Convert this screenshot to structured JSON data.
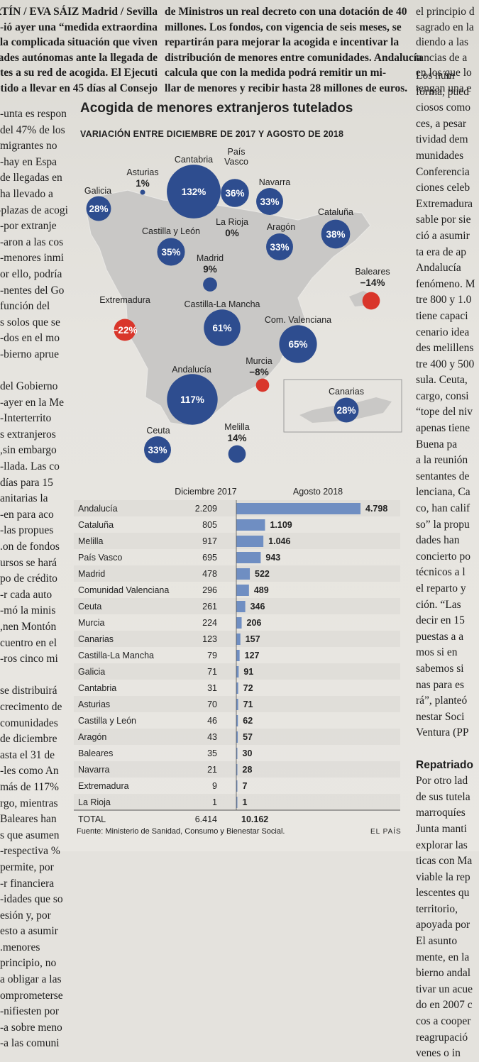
{
  "article": {
    "byline": "ARTÍN / EVA SÁIZ Madrid / Sevilla",
    "intro_left": [
      "ARTÍN / EVA SÁIZ Madrid / Sevilla",
      "ió ayer una “medida extraordina-",
      "la complicada situación que viven",
      "ades autónomas ante la llegada de",
      "ntes a su red de acogida. El Ejecuti-",
      "etido a llevar en 45 días al Consejo"
    ],
    "intro_mid": [
      "de Ministros un real decreto con una dotación de 40",
      "millones. Los fondos, con vigencia de seis meses, se",
      "repartirán para mejorar la acogida e incentivar la",
      "distribución de menores entre comunidades. Andalucía",
      "calcula que con la medida podrá remitir un mi-",
      "llar de menores y recibir hasta 28 millones de euros."
    ],
    "intro_right": [
      "el principio d",
      "sagrado en la",
      "diendo a las",
      "tancias de a",
      "en los que lo",
      "tengan una e"
    ],
    "left_column": [
      "unta es respon-",
      "del 47% de los",
      "migrantes no",
      "hay en Espa-",
      "de llegadas en",
      "ha llevado a",
      "plazas de acogi-",
      "por extranje-",
      "aron a las cos-",
      "menores inmi-",
      "or ello, podría",
      "nentes del Go-",
      "función del",
      "s solos que se",
      "dos en el mo-",
      "bierno aprue-",
      "",
      "del Gobierno",
      "ayer en la Me-",
      "Interterrito-",
      "s extranjeros",
      "sin embargo,",
      "llada. Las co-",
      "15 días para",
      "anitarias la",
      "en para aco-",
      "las propues-",
      "on de fondos.",
      "ursos se hará",
      "po de crédito",
      "r cada auto-",
      "mó la minis-",
      "nen Montón,",
      "cuentro en el",
      "ros cinco mi-",
      "",
      "se distribuirá",
      "crecimento de",
      "comunidades",
      "de diciembre",
      "asta el 31 de",
      "les como An-",
      "117% más de",
      "rgo, mientras",
      "Baleares han",
      "s que asumen",
      "% respectiva-",
      "permite, por",
      "r financiera-",
      "idades que so-",
      "esión y, por",
      "esto a asumir",
      "menores.",
      "principio, no",
      "a obligar a las",
      "omprometerse",
      "nifiesten por-",
      "a sobre meno-",
      "a las comuni-"
    ],
    "right_column": [
      "Los núm",
      "forma, pued",
      "ciosos como",
      "ces, a pesar",
      "tividad dem",
      "munidades",
      "Conferencia",
      "ciones celeb",
      "Extremadura",
      "sable por sie",
      "ció a asumir",
      "ta era de ap",
      "Andalucía",
      "fenómeno. M",
      "tre 800 y 1.0",
      "tiene capaci",
      "cenario idea",
      "des melillens",
      "tre 400 y 500",
      "sula. Ceuta,",
      "cargo, consi",
      "“tope del niv",
      "apenas tiene",
      "Buena pa",
      "a la reunión",
      "sentantes de",
      "lenciana, Ca",
      "co, han calif",
      "so” la propu",
      "dades han",
      "concierto po",
      "técnicos a l",
      "el reparto y",
      "ción. “Las",
      "decir en 15",
      "puestas a a",
      "mos si en",
      "sabemos si",
      "nas para es",
      "rá”, planteó",
      "nestar Soci",
      "Ventura (PP",
      "",
      "Repatriado",
      "Por otro lad",
      "de sus tutela",
      "marroquíes",
      "Junta manti",
      "explorar las",
      "ticas con Ma",
      "viable la rep",
      "lescentes qu",
      "territorio,",
      "apoyada por",
      "El asunto",
      "mente, en la",
      "bierno andal",
      "tivar un acue",
      "do en 2007 c",
      "cos a cooper",
      "reagrupació",
      "venes o in"
    ]
  },
  "graphic": {
    "title": "Acogida de menores extranjeros tutelados",
    "subtitle": "VARIACIÓN ENTRE DICIEMBRE DE 2017 Y AGOSTO DE 2018",
    "source": "Fuente: Ministerio de Sanidad, Consumo y Bienestar Social.",
    "brand": "EL PAÍS",
    "positive_color": "#2e4d8f",
    "negative_color": "#d9362b"
  },
  "chart_data": [
    {
      "type": "scatter",
      "title": "Acogida de menores extranjeros tutelados",
      "subtitle": "VARIACIÓN ENTRE DICIEMBRE DE 2017 Y AGOSTO DE 2018",
      "regions": [
        {
          "name": "Galicia",
          "label": "Galicia",
          "pct": 28
        },
        {
          "name": "Asturias",
          "label": "Asturias",
          "pct": 1
        },
        {
          "name": "Cantabria",
          "label": "Cantabria",
          "pct": 132
        },
        {
          "name": "País Vasco",
          "label": "País\nVasco",
          "pct": 36
        },
        {
          "name": "Navarra",
          "label": "Navarra",
          "pct": 33
        },
        {
          "name": "La Rioja",
          "label": "La Rioja",
          "pct": 0
        },
        {
          "name": "Castilla y León",
          "label": "Castilla y León",
          "pct": 35
        },
        {
          "name": "Aragón",
          "label": "Aragón",
          "pct": 33
        },
        {
          "name": "Cataluña",
          "label": "Cataluña",
          "pct": 38
        },
        {
          "name": "Madrid",
          "label": "Madrid",
          "pct": 9
        },
        {
          "name": "Baleares",
          "label": "Baleares",
          "pct": -14
        },
        {
          "name": "Extremadura",
          "label": "Extremadura",
          "pct": -22
        },
        {
          "name": "Castilla-La Mancha",
          "label": "Castilla-La Mancha",
          "pct": 61
        },
        {
          "name": "Com. Valenciana",
          "label": "Com. Valenciana",
          "pct": 65
        },
        {
          "name": "Murcia",
          "label": "Murcia",
          "pct": -8
        },
        {
          "name": "Andalucía",
          "label": "Andalucía",
          "pct": 117
        },
        {
          "name": "Canarias",
          "label": "Canarias",
          "pct": 28
        },
        {
          "name": "Ceuta",
          "label": "Ceuta",
          "pct": 33
        },
        {
          "name": "Melilla",
          "label": "Melilla",
          "pct": 14
        }
      ]
    },
    {
      "type": "bar",
      "series": [
        {
          "name": "Diciembre 2017",
          "values": [
            2209,
            805,
            917,
            695,
            478,
            296,
            261,
            224,
            123,
            79,
            71,
            31,
            70,
            46,
            43,
            35,
            21,
            9,
            1
          ]
        },
        {
          "name": "Agosto 2018",
          "values": [
            4798,
            1109,
            1046,
            943,
            522,
            489,
            346,
            206,
            157,
            127,
            91,
            72,
            71,
            62,
            57,
            30,
            28,
            7,
            1
          ]
        }
      ],
      "categories": [
        "Andalucía",
        "Cataluña",
        "Melilla",
        "País Vasco",
        "Madrid",
        "Comunidad Valenciana",
        "Ceuta",
        "Murcia",
        "Canarias",
        "Castilla-La Mancha",
        "Galicia",
        "Cantabria",
        "Asturias",
        "Castilla y León",
        "Aragón",
        "Baleares",
        "Navarra",
        "Extremadura",
        "La Rioja"
      ],
      "dec_labels": [
        "2.209",
        "805",
        "917",
        "695",
        "478",
        "296",
        "261",
        "224",
        "123",
        "79",
        "71",
        "31",
        "70",
        "46",
        "43",
        "35",
        "21",
        "9",
        "1"
      ],
      "aug_labels": [
        "4.798",
        "1.109",
        "1.046",
        "943",
        "522",
        "489",
        "346",
        "206",
        "157",
        "127",
        "91",
        "72",
        "71",
        "62",
        "57",
        "30",
        "28",
        "7",
        "1"
      ],
      "total_label": "TOTAL",
      "total_dec": "6.414",
      "total_aug": "10.162"
    }
  ]
}
